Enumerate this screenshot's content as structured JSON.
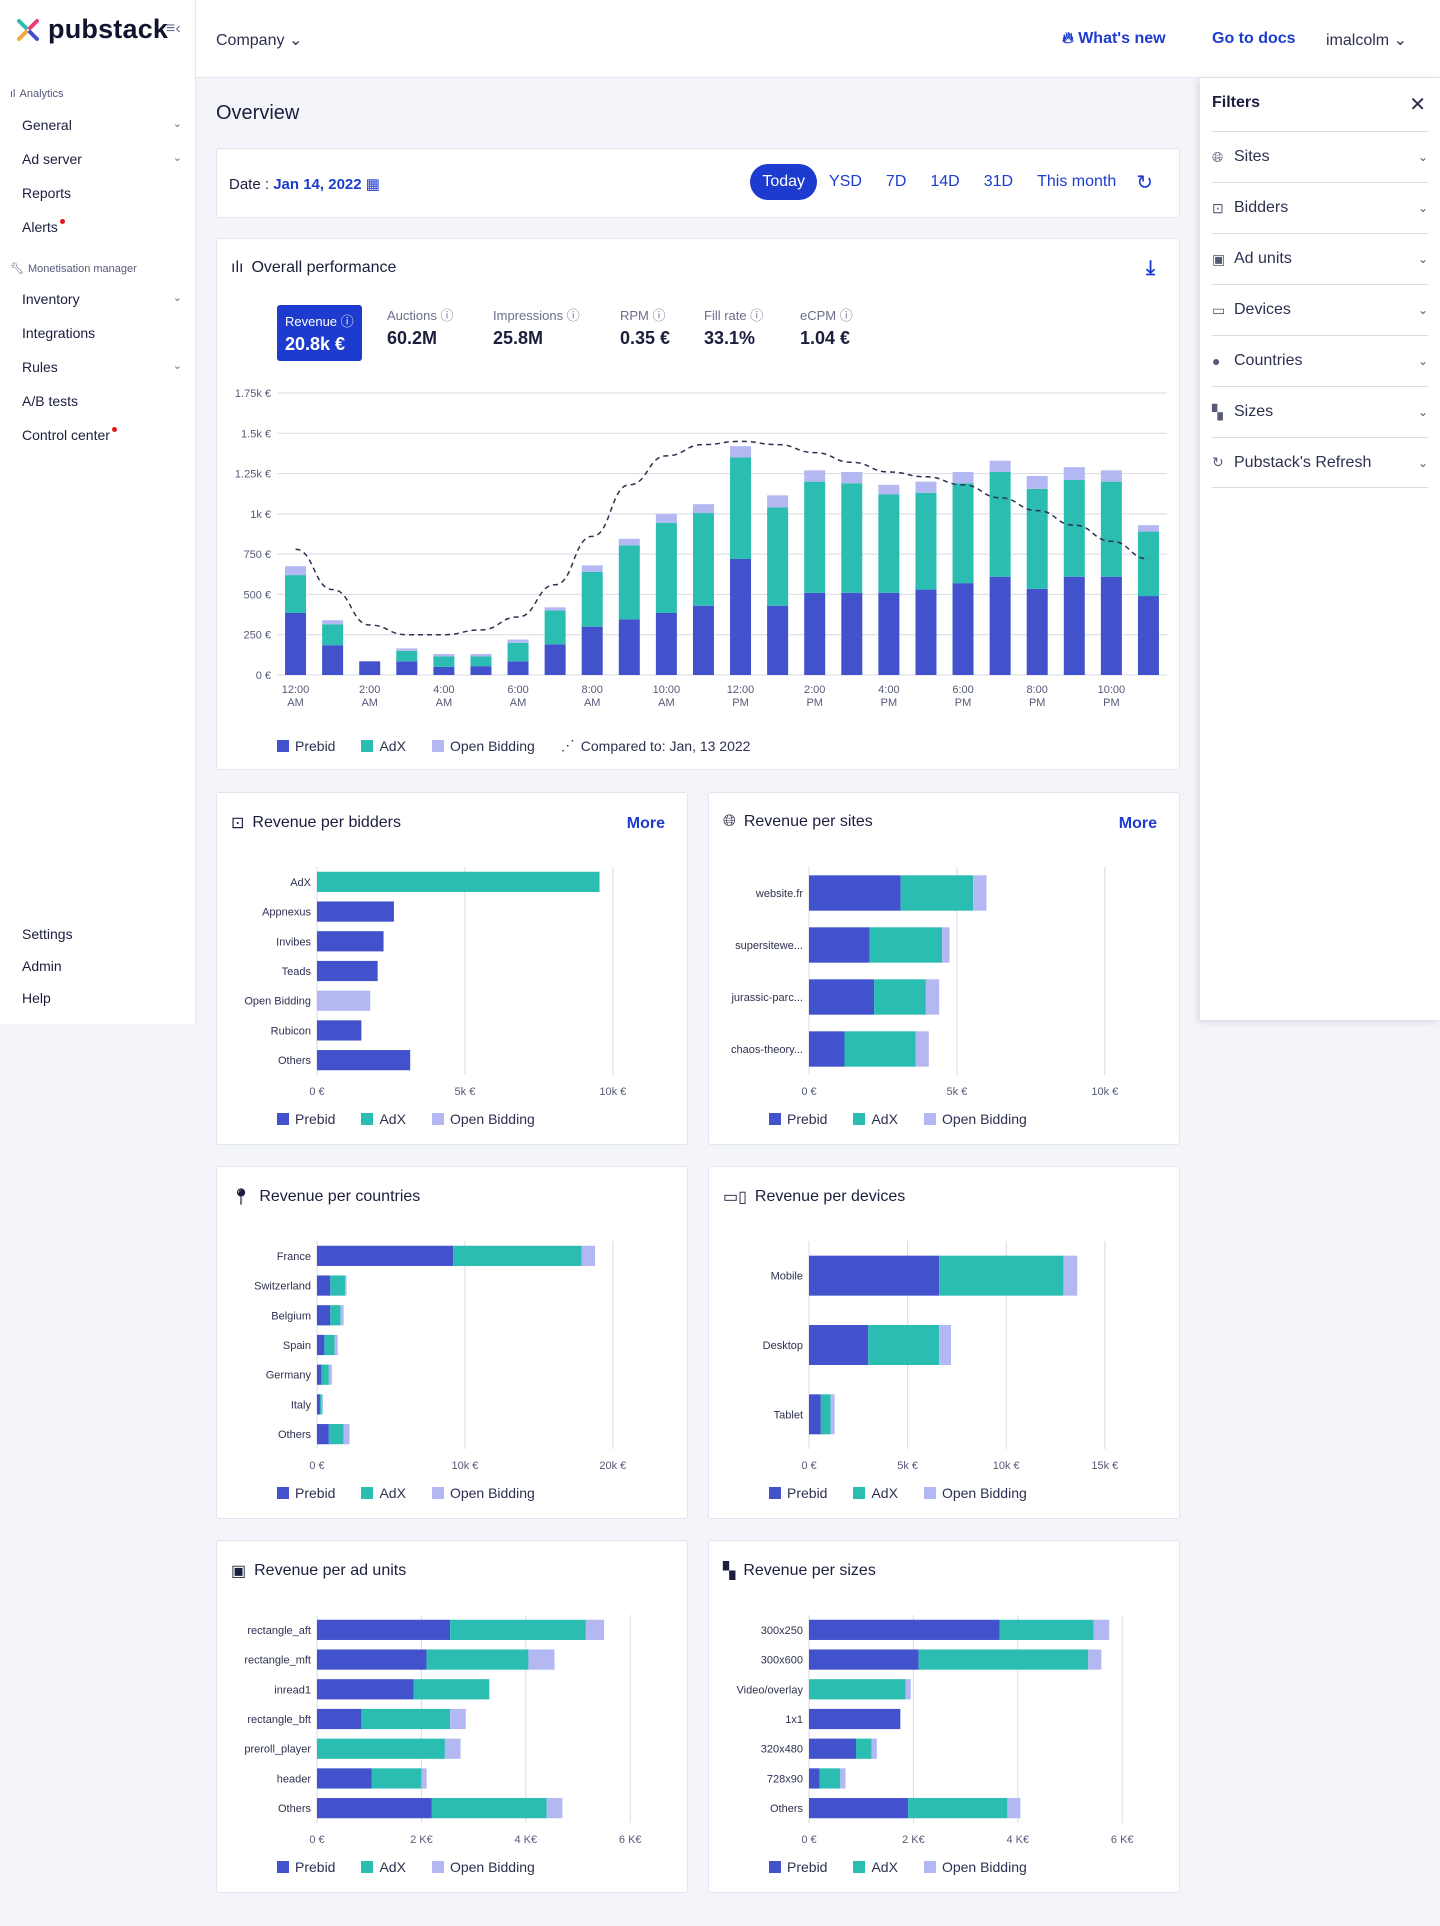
{
  "app": {
    "brand": "pubstack"
  },
  "sidebar": {
    "sections": [
      {
        "title": "Analytics",
        "items": [
          {
            "label": "General",
            "chevron": true
          },
          {
            "label": "Ad server",
            "chevron": true
          },
          {
            "label": "Reports"
          },
          {
            "label": "Alerts",
            "alert": true
          }
        ]
      },
      {
        "title": "Monetisation manager",
        "items": [
          {
            "label": "Inventory",
            "chevron": true
          },
          {
            "label": "Integrations"
          },
          {
            "label": "Rules",
            "chevron": true
          },
          {
            "label": "A/B tests"
          },
          {
            "label": "Control center",
            "alert": true
          }
        ]
      }
    ],
    "bottom": [
      "Settings",
      "Admin",
      "Help"
    ]
  },
  "topbar": {
    "company": "Company",
    "whats_new": "What's new",
    "go_to_docs": "Go to docs",
    "user": "imalcolm"
  },
  "page_title": "Overview",
  "date": {
    "label": "Date :",
    "value": "Jan 14, 2022",
    "ranges": [
      "Today",
      "YSD",
      "7D",
      "14D",
      "31D",
      "This month"
    ],
    "active": "Today"
  },
  "performance": {
    "title": "Overall performance",
    "metrics": [
      {
        "label": "Revenue",
        "value": "20.8k €"
      },
      {
        "label": "Auctions",
        "value": "60.2M"
      },
      {
        "label": "Impressions",
        "value": "25.8M"
      },
      {
        "label": "RPM",
        "value": "0.35 €"
      },
      {
        "label": "Fill rate",
        "value": "33.1%"
      },
      {
        "label": "eCPM",
        "value": "1.04 €"
      }
    ],
    "compared_label": "Compared to: Jan, 13 2022"
  },
  "legend_labels": [
    "Prebid",
    "AdX",
    "Open Bidding"
  ],
  "colors": {
    "prebid": "#4152cc",
    "adx": "#2bbdb2",
    "open_bidding": "#b3b8f2",
    "accent": "#1d3ccf"
  },
  "filters": {
    "title": "Filters",
    "items": [
      {
        "label": "Sites",
        "icon": "globe-icon"
      },
      {
        "label": "Bidders",
        "icon": "dollar-icon"
      },
      {
        "label": "Ad units",
        "icon": "ad-unit-icon"
      },
      {
        "label": "Devices",
        "icon": "devices-icon"
      },
      {
        "label": "Countries",
        "icon": "pin-icon"
      },
      {
        "label": "Sizes",
        "icon": "sizes-icon"
      },
      {
        "label": "Pubstack's Refresh",
        "icon": "refresh-icon"
      }
    ]
  },
  "chart_data": [
    {
      "id": "overall",
      "type": "bar",
      "stacked": true,
      "title": "Overall performance",
      "ylim": [
        0,
        1750
      ],
      "yticks": [
        "0 €",
        "250 €",
        "500 €",
        "750 €",
        "1k €",
        "1.25k €",
        "1.5k €",
        "1.75k €"
      ],
      "xticks": [
        [
          "12:00",
          "AM"
        ],
        [
          "2:00",
          "AM"
        ],
        [
          "4:00",
          "AM"
        ],
        [
          "6:00",
          "AM"
        ],
        [
          "8:00",
          "AM"
        ],
        [
          "10:00",
          "AM"
        ],
        [
          "12:00",
          "PM"
        ],
        [
          "2:00",
          "PM"
        ],
        [
          "4:00",
          "PM"
        ],
        [
          "6:00",
          "PM"
        ],
        [
          "8:00",
          "PM"
        ],
        [
          "10:00",
          "PM"
        ]
      ],
      "series": [
        {
          "name": "Prebid",
          "values": [
            385,
            185,
            85,
            85,
            50,
            55,
            85,
            190,
            300,
            345,
            385,
            430,
            720,
            430,
            510,
            510,
            510,
            530,
            570,
            610,
            535,
            610,
            610,
            490
          ]
        },
        {
          "name": "AdX",
          "values": [
            235,
            130,
            0,
            65,
            65,
            60,
            115,
            210,
            340,
            460,
            560,
            575,
            630,
            610,
            690,
            680,
            610,
            600,
            620,
            650,
            620,
            600,
            590,
            400
          ]
        },
        {
          "name": "Open Bidding",
          "values": [
            55,
            25,
            0,
            15,
            15,
            15,
            20,
            20,
            40,
            40,
            55,
            55,
            70,
            75,
            70,
            70,
            60,
            70,
            70,
            70,
            80,
            80,
            70,
            40
          ]
        }
      ],
      "comparison": {
        "name": "Compared to: Jan, 13 2022",
        "values": [
          780,
          530,
          310,
          250,
          250,
          280,
          360,
          560,
          860,
          1180,
          1360,
          1430,
          1450,
          1430,
          1380,
          1320,
          1260,
          1230,
          1180,
          1100,
          1020,
          930,
          830,
          720
        ]
      }
    },
    {
      "id": "bidders",
      "type": "bar",
      "orientation": "horizontal",
      "stacked": true,
      "title": "Revenue per bidders",
      "categories": [
        "AdX",
        "Appnexus",
        "Invibes",
        "Teads",
        "Open Bidding",
        "Rubicon",
        "Others"
      ],
      "xlim": [
        0,
        12000
      ],
      "xticks": [
        [
          0,
          "0 €"
        ],
        [
          5000,
          "5k €"
        ],
        [
          10000,
          "10k €"
        ]
      ],
      "series": [
        {
          "name": "Prebid",
          "values": [
            0,
            2600,
            2250,
            2050,
            0,
            1500,
            3150
          ]
        },
        {
          "name": "AdX",
          "values": [
            9550,
            0,
            0,
            0,
            0,
            0,
            0
          ]
        },
        {
          "name": "Open Bidding",
          "values": [
            0,
            0,
            0,
            0,
            1800,
            0,
            0
          ]
        }
      ]
    },
    {
      "id": "sites",
      "type": "bar",
      "orientation": "horizontal",
      "stacked": true,
      "title": "Revenue per sites",
      "categories": [
        "website.fr",
        "supersitewe...",
        "jurassic-parc...",
        "chaos-theory..."
      ],
      "xlim": [
        0,
        12000
      ],
      "xticks": [
        [
          0,
          "0 €"
        ],
        [
          5000,
          "5k €"
        ],
        [
          10000,
          "10k €"
        ]
      ],
      "series": [
        {
          "name": "Prebid",
          "values": [
            3100,
            2050,
            2200,
            1200
          ]
        },
        {
          "name": "AdX",
          "values": [
            2450,
            2450,
            1750,
            2400
          ]
        },
        {
          "name": "Open Bidding",
          "values": [
            450,
            250,
            450,
            450
          ]
        }
      ]
    },
    {
      "id": "countries",
      "type": "bar",
      "orientation": "horizontal",
      "stacked": true,
      "title": "Revenue per countries",
      "categories": [
        "France",
        "Switzerland",
        "Belgium",
        "Spain",
        "Germany",
        "Italy",
        "Others"
      ],
      "xlim": [
        0,
        24000
      ],
      "xticks": [
        [
          0,
          "0 €"
        ],
        [
          10000,
          "10k €"
        ],
        [
          20000,
          "20k €"
        ]
      ],
      "series": [
        {
          "name": "Prebid",
          "values": [
            9200,
            900,
            900,
            500,
            300,
            200,
            800
          ]
        },
        {
          "name": "AdX",
          "values": [
            8700,
            1000,
            700,
            700,
            500,
            100,
            1000
          ]
        },
        {
          "name": "Open Bidding",
          "values": [
            900,
            100,
            200,
            200,
            200,
            100,
            400
          ]
        }
      ]
    },
    {
      "id": "devices",
      "type": "bar",
      "orientation": "horizontal",
      "stacked": true,
      "title": "Revenue per devices",
      "categories": [
        "Mobile",
        "Desktop",
        "Tablet"
      ],
      "xlim": [
        0,
        18000
      ],
      "xticks": [
        [
          0,
          "0 €"
        ],
        [
          5000,
          "5k €"
        ],
        [
          10000,
          "10k €"
        ],
        [
          15000,
          "15k €"
        ]
      ],
      "series": [
        {
          "name": "Prebid",
          "values": [
            6600,
            3000,
            600
          ]
        },
        {
          "name": "AdX",
          "values": [
            6300,
            3600,
            500
          ]
        },
        {
          "name": "Open Bidding",
          "values": [
            700,
            600,
            200
          ]
        }
      ]
    },
    {
      "id": "adunits",
      "type": "bar",
      "orientation": "horizontal",
      "stacked": true,
      "title": "Revenue per ad units",
      "categories": [
        "rectangle_aft",
        "rectangle_mft",
        "inread1",
        "rectangle_bft",
        "preroll_player",
        "header",
        "Others"
      ],
      "xlim": [
        0,
        6800
      ],
      "xticks": [
        [
          0,
          "0 €"
        ],
        [
          2000,
          "2 K€"
        ],
        [
          4000,
          "4 K€"
        ],
        [
          6000,
          "6 K€"
        ]
      ],
      "series": [
        {
          "name": "Prebid",
          "values": [
            2550,
            2100,
            1850,
            850,
            0,
            1050,
            2200
          ]
        },
        {
          "name": "AdX",
          "values": [
            2600,
            1950,
            1450,
            1700,
            2450,
            950,
            2200
          ]
        },
        {
          "name": "Open Bidding",
          "values": [
            350,
            500,
            0,
            300,
            300,
            100,
            300
          ]
        }
      ]
    },
    {
      "id": "sizes",
      "type": "bar",
      "orientation": "horizontal",
      "stacked": true,
      "title": "Revenue per sizes",
      "categories": [
        "300x250",
        "300x600",
        "Video/overlay",
        "1x1",
        "320x480",
        "728x90",
        "Others"
      ],
      "xlim": [
        0,
        6800
      ],
      "xticks": [
        [
          0,
          "0 €"
        ],
        [
          2000,
          "2 K€"
        ],
        [
          4000,
          "4 K€"
        ],
        [
          6000,
          "6 K€"
        ]
      ],
      "series": [
        {
          "name": "Prebid",
          "values": [
            3650,
            2100,
            0,
            1750,
            900,
            200,
            1900
          ]
        },
        {
          "name": "AdX",
          "values": [
            1800,
            3250,
            1850,
            0,
            300,
            400,
            1900
          ]
        },
        {
          "name": "Open Bidding",
          "values": [
            300,
            250,
            100,
            0,
            100,
            100,
            250
          ]
        }
      ]
    }
  ]
}
